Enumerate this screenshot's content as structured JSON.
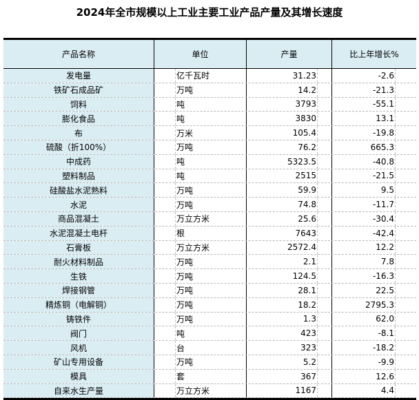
{
  "title": "2024年全市规模以上工业主要工业产品产量及其增长速度",
  "headers": [
    "产品名称",
    "单位",
    "产量",
    "比上年增长%"
  ],
  "rows": [
    [
      "发电量",
      "亿千瓦时",
      "31.23",
      "-2.6"
    ],
    [
      "铁矿石成品矿",
      "万吨",
      "14.2",
      "-21.3"
    ],
    [
      "饲料",
      "吨",
      "3793",
      "-55.1"
    ],
    [
      "膨化食品",
      "吨",
      "3830",
      "13.1"
    ],
    [
      "布",
      "万米",
      "105.4",
      "-19.8"
    ],
    [
      "硫酸（折100%）",
      "万吨",
      "76.2",
      "665.3"
    ],
    [
      "中成药",
      "吨",
      "5323.5",
      "-40.8"
    ],
    [
      "塑料制品",
      "吨",
      "2515",
      "-21.5"
    ],
    [
      "硅酸盐水泥熟料",
      "万吨",
      "59.9",
      "9.5"
    ],
    [
      "水泥",
      "万吨",
      "74.8",
      "-11.7"
    ],
    [
      "商品混凝土",
      "万立方米",
      "25.6",
      "-30.4"
    ],
    [
      "水泥混凝土电杆",
      "根",
      "7643",
      "-42.4"
    ],
    [
      "石膏板",
      "万立方米",
      "2572.4",
      "12.2"
    ],
    [
      "耐火材料制品",
      "万吨",
      "2.1",
      "7.8"
    ],
    [
      "生铁",
      "万吨",
      "124.5",
      "-16.3"
    ],
    [
      "焊接钢管",
      "万吨",
      "28.1",
      "22.5"
    ],
    [
      "精炼铜（电解铜）",
      "万吨",
      "18.2",
      "2795.3"
    ],
    [
      "铸铁件",
      "万吨",
      "1.3",
      "62.0"
    ],
    [
      "阀门",
      "吨",
      "423",
      "-8.1"
    ],
    [
      "风机",
      "台",
      "323",
      "-18.2"
    ],
    [
      "矿山专用设备",
      "万吨",
      "5.2",
      "-9.9"
    ],
    [
      "模具",
      "套",
      "367",
      "12.6"
    ],
    [
      "自来水生产量",
      "万立方米",
      "1167",
      "4.4"
    ]
  ],
  "colors": {
    "name_column_bg": "#daedf3"
  }
}
